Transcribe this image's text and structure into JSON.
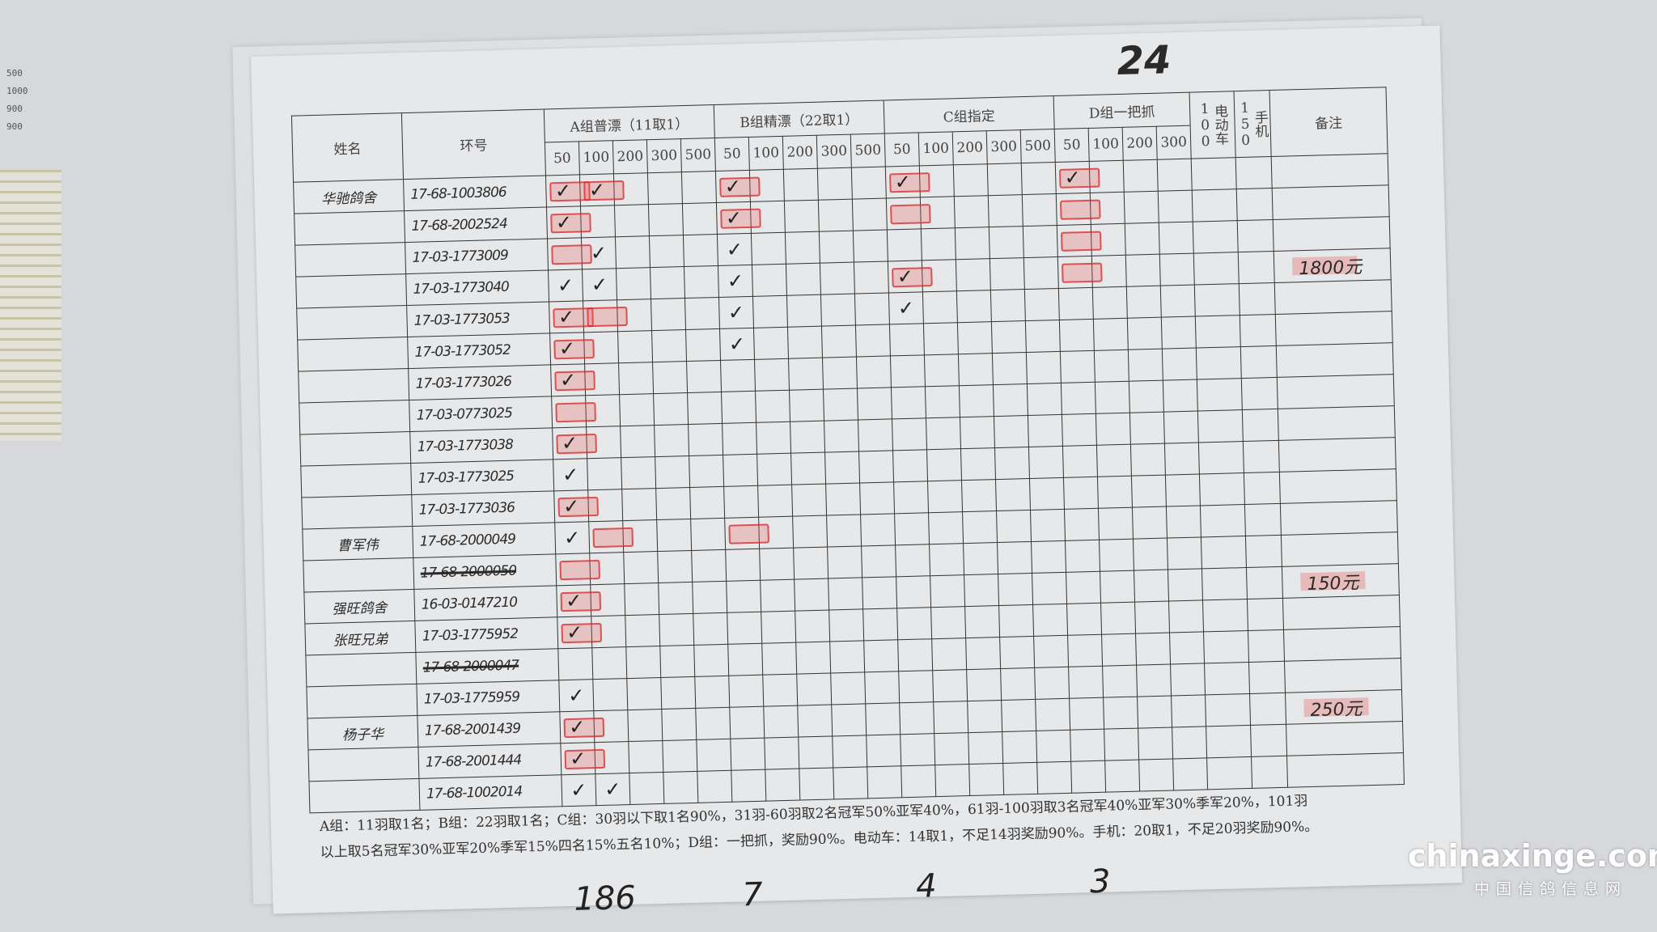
{
  "page_number": "24",
  "header": {
    "name": "姓名",
    "ring": "环号",
    "groups": [
      {
        "label": "A组普漂（11取1）",
        "key": "A",
        "distances": [
          "50",
          "100",
          "200",
          "300",
          "500"
        ]
      },
      {
        "label": "B组精漂（22取1）",
        "key": "B",
        "distances": [
          "50",
          "100",
          "200",
          "300",
          "500"
        ]
      },
      {
        "label": "C组指定",
        "key": "C",
        "distances": [
          "50",
          "100",
          "200",
          "300",
          "500"
        ]
      },
      {
        "label": "D组一把抓",
        "key": "D",
        "distances": [
          "50",
          "100",
          "200",
          "300"
        ]
      }
    ],
    "ebike": "电动车100",
    "phone": "手机150",
    "remarks": "备注"
  },
  "rows": [
    {
      "name": "华驰鸽舍",
      "ring": "17-68-1003806",
      "marks": {
        "A50": "stamp-check",
        "A100": "stamp-check",
        "B50": "stamp-check",
        "C50": "stamp-check",
        "D50": "stamp-check"
      }
    },
    {
      "name": "",
      "ring": "17-68-2002524",
      "marks": {
        "A50": "stamp-check",
        "B50": "stamp-check",
        "C50": "stamp",
        "D50": "stamp"
      }
    },
    {
      "name": "",
      "ring": "17-03-1773009",
      "marks": {
        "A50": "stamp",
        "A100": "check",
        "B50": "check",
        "D50": "stamp"
      }
    },
    {
      "name": "",
      "ring": "17-03-1773040",
      "marks": {
        "A50": "check",
        "A100": "check",
        "B50": "check",
        "C50": "stamp-check",
        "D50": "stamp"
      },
      "remark": "1800元"
    },
    {
      "name": "",
      "ring": "17-03-1773053",
      "marks": {
        "A50": "stamp-check",
        "A100": "stamp",
        "B50": "check",
        "C50": "check"
      }
    },
    {
      "name": "",
      "ring": "17-03-1773052",
      "marks": {
        "A50": "stamp-check",
        "B50": "check"
      }
    },
    {
      "name": "",
      "ring": "17-03-1773026",
      "marks": {
        "A50": "stamp-check"
      }
    },
    {
      "name": "",
      "ring": "17-03-0773025",
      "marks": {
        "A50": "stamp"
      }
    },
    {
      "name": "",
      "ring": "17-03-1773038",
      "marks": {
        "A50": "stamp-check"
      }
    },
    {
      "name": "",
      "ring": "17-03-1773025",
      "marks": {
        "A50": "check"
      }
    },
    {
      "name": "",
      "ring": "17-03-1773036",
      "marks": {
        "A50": "stamp-check"
      }
    },
    {
      "name": "曹军伟",
      "ring": "17-68-2000049",
      "marks": {
        "A50": "check",
        "A100": "stamp",
        "B50": "stamp"
      }
    },
    {
      "name": "",
      "ring": "17-68-2000050",
      "struck": true,
      "marks": {
        "A50": "stamp"
      }
    },
    {
      "name": "强旺鸽舍",
      "ring": "16-03-0147210",
      "marks": {
        "A50": "stamp-check"
      },
      "remark": "150元"
    },
    {
      "name": "张旺兄弟",
      "ring": "17-03-1775952",
      "marks": {
        "A50": "stamp-check"
      }
    },
    {
      "name": "",
      "ring": "17-68-2000047",
      "struck": true,
      "marks": {}
    },
    {
      "name": "",
      "ring": "17-03-1775959",
      "marks": {
        "A50": "check"
      }
    },
    {
      "name": "杨子华",
      "ring": "17-68-2001439",
      "marks": {
        "A50": "stamp-check"
      },
      "remark": "250元"
    },
    {
      "name": "",
      "ring": "17-68-2001444",
      "marks": {
        "A50": "stamp-check"
      }
    },
    {
      "name": "",
      "ring": "17-68-1002014",
      "marks": {
        "A50": "check",
        "A100": "check"
      }
    }
  ],
  "footer": {
    "line1": "A组：11羽取1名；B组：22羽取1名；C组：30羽以下取1名90%，31羽-60羽取2名冠军50%亚军40%，61羽-100羽取3名冠军40%亚军30%季军20%，101羽",
    "line2": "以上取5名冠军30%亚军20%季军15%四名15%五名10%；D组：一把抓，奖励90%。电动车：14取1，不足14羽奖励90%。手机：20取1，不足20羽奖励90%。"
  },
  "totals": {
    "A": "186",
    "B": "7",
    "C": "4",
    "D": "3"
  },
  "left_note": [
    "500",
    "1000",
    "900",
    "900"
  ],
  "watermark": {
    "site": "chinaxinge.com",
    "name": "中国信鸽信息网"
  },
  "colors": {
    "stamp": "#dc2828",
    "paper": "#e7e8ea",
    "ink": "#222222"
  }
}
